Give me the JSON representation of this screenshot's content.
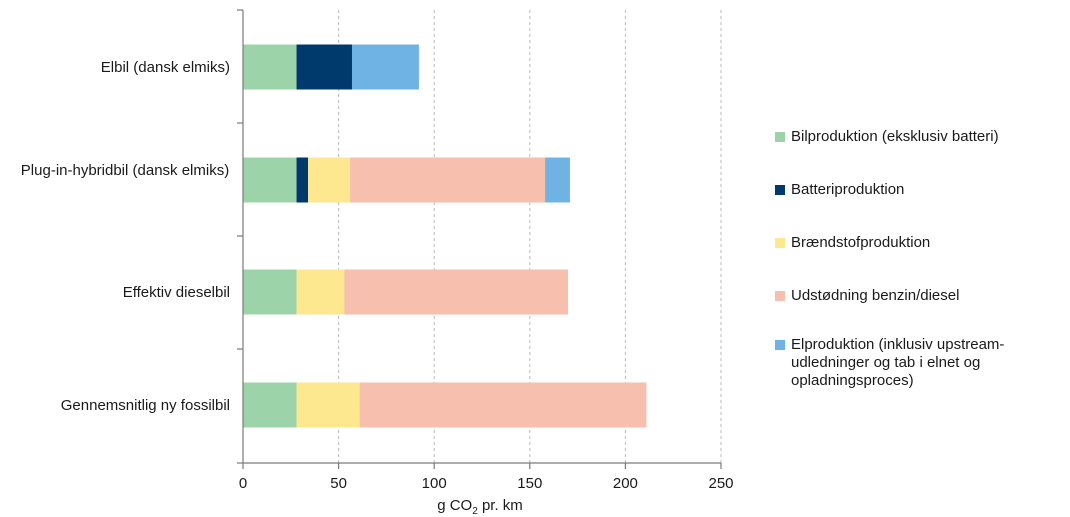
{
  "chart_data": {
    "type": "bar",
    "orientation": "horizontal",
    "stacked": true,
    "categories": [
      "Elbil (dansk elmiks)",
      "Plug-in-hybridbil (dansk elmiks)",
      "Effektiv dieselbil",
      "Gennemsnitlig ny fossilbil"
    ],
    "series": [
      {
        "name": "Bilproduktion (eksklusiv batteri)",
        "color": "#9dd3a8",
        "values": [
          28,
          28,
          28,
          28
        ]
      },
      {
        "name": "Batteriproduktion",
        "color": "#003a6c",
        "values": [
          29,
          6,
          0,
          0
        ]
      },
      {
        "name": "Brændstofproduktion",
        "color": "#fde88f",
        "values": [
          0,
          22,
          25,
          33
        ]
      },
      {
        "name": "Udstødning benzin/diesel",
        "color": "#f7bfae",
        "values": [
          0,
          102,
          117,
          150
        ]
      },
      {
        "name": "Elproduktion (inklusiv upstream-udledninger og tab i elnet og opladningsproces)",
        "color": "#6fb2e4",
        "values": [
          35,
          13,
          0,
          0
        ]
      }
    ],
    "x_ticks": [
      "0",
      "50",
      "100",
      "150",
      "200",
      "250"
    ],
    "xlim": [
      0,
      250
    ],
    "xlabel_main": "g CO",
    "xlabel_sub": "2",
    "xlabel_tail": " pr. km",
    "grid": "vertical-dashed",
    "legend_position": "right"
  }
}
